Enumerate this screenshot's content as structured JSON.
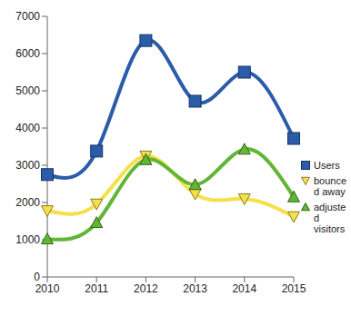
{
  "chart_data": {
    "type": "line",
    "categories": [
      "2010",
      "2011",
      "2012",
      "2013",
      "2014",
      "2015"
    ],
    "series": [
      {
        "name": "Users",
        "color": "#2a5caa",
        "marker": "square",
        "values": [
          2750,
          3380,
          6350,
          4720,
          5500,
          3720
        ]
      },
      {
        "name": "bounced away",
        "color": "#f5e04a",
        "marker": "triangle-down",
        "values": [
          1780,
          1960,
          3250,
          2230,
          2100,
          1620
        ]
      },
      {
        "name": "adjusted visitors",
        "color": "#62b535",
        "marker": "triangle",
        "values": [
          1020,
          1460,
          3150,
          2480,
          3430,
          2150
        ]
      }
    ],
    "ylim": [
      0,
      7000
    ],
    "yticks": [
      0,
      1000,
      2000,
      3000,
      4000,
      5000,
      6000,
      7000
    ],
    "grid": false,
    "legend": "right"
  }
}
